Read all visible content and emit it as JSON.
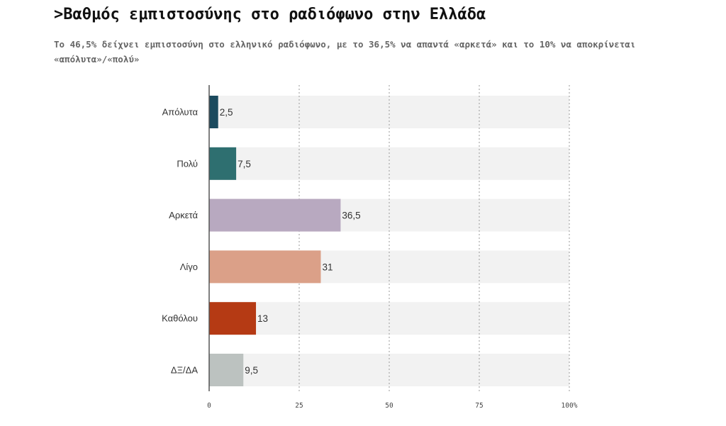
{
  "title": ">Βαθμός εμπιστοσύνης στο ραδιόφωνο στην Ελλάδα",
  "subtitle": "Το 46,5% δείχνει εμπιστοσύνη στο ελληνικό ραδιόφωνο, με το 36,5% να απαντά «αρκετά» και το 10% να αποκρίνεται «απόλυτα»/«πολύ»",
  "chart_data": {
    "type": "bar",
    "orientation": "horizontal",
    "categories": [
      "Απόλυτα",
      "Πολύ",
      "Αρκετά",
      "Λίγο",
      "Καθόλου",
      "ΔΞ/ΔΑ"
    ],
    "values": [
      2.5,
      7.5,
      36.5,
      31,
      13,
      9.5
    ],
    "value_labels": [
      "2,5",
      "7,5",
      "36,5",
      "31",
      "13",
      "9,5"
    ],
    "colors": [
      "#1b4a5e",
      "#2e6f70",
      "#b8a9c0",
      "#dba088",
      "#b53a14",
      "#bcc2c0"
    ],
    "xlim": [
      0,
      100
    ],
    "x_ticks": [
      0,
      25,
      50,
      75,
      100
    ],
    "x_tick_labels": [
      "0",
      "25",
      "50",
      "75",
      "100%"
    ],
    "grid": "vertical dotted",
    "track_color": "#f2f2f2",
    "legend": "none"
  }
}
